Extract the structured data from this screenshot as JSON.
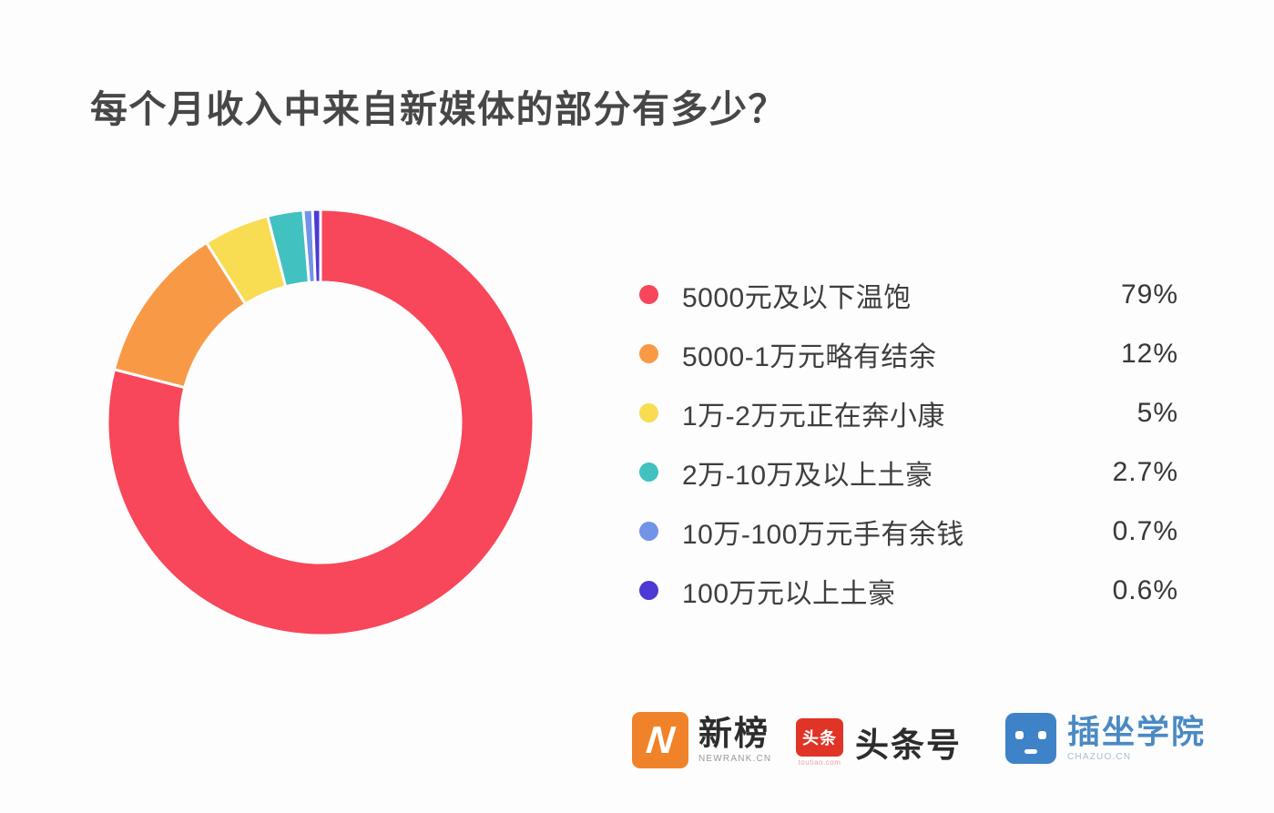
{
  "title": "每个月收入中来自新媒体的部分有多少？",
  "chart_data": {
    "type": "pie",
    "subtype": "donut",
    "title": "每个月收入中来自新媒体的部分有多少？",
    "direction": "clockwise",
    "start_angle_deg": 0,
    "legend_position": "right",
    "inner_radius_ratio": 0.66,
    "categories": [
      "5000元及以下温饱",
      "5000-1万元略有结余",
      "1万-2万元正在奔小康",
      "2万-10万及以上土豪",
      "10万-100万元手有余钱",
      "100万元以上土豪"
    ],
    "values": [
      79,
      12,
      5,
      2.7,
      0.7,
      0.6
    ],
    "slices": [
      {
        "label": "5000元及以下温饱",
        "value": 79,
        "display": "79%",
        "color": "#f8465a"
      },
      {
        "label": "5000-1万元略有结余",
        "value": 12,
        "display": "12%",
        "color": "#f89a45"
      },
      {
        "label": "1万-2万元正在奔小康",
        "value": 5,
        "display": "5%",
        "color": "#f8dc52"
      },
      {
        "label": "2万-10万及以上土豪",
        "value": 2.7,
        "display": "2.7%",
        "color": "#41c1c0"
      },
      {
        "label": "10万-100万元手有余钱",
        "value": 0.7,
        "display": "0.7%",
        "color": "#7193e8"
      },
      {
        "label": "100万元以上土豪",
        "value": 0.6,
        "display": "0.6%",
        "color": "#4b3ad4"
      }
    ]
  },
  "footer": {
    "newrank": {
      "name": "新榜",
      "sub": "NEWRANK.CN",
      "icon_color": "#f08329",
      "icon_glyph": "N"
    },
    "toutiao": {
      "name": "头条号",
      "badge_text": "头条",
      "badge_sub": "toutiao.com",
      "icon_color": "#e03426"
    },
    "chazuo": {
      "name": "插坐学院",
      "sub": "CHAZUO.CN",
      "icon_color": "#3e82c8",
      "text_color": "#4a8ac4"
    }
  }
}
